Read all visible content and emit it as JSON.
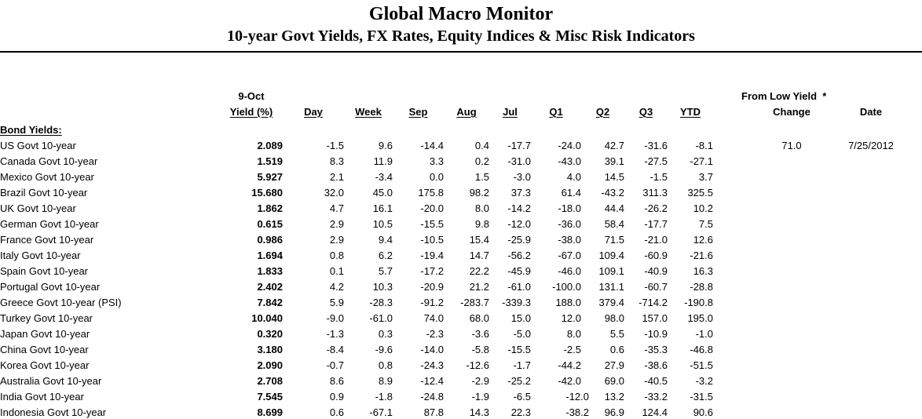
{
  "header": {
    "title": "Global Macro Monitor",
    "subtitle": "10-year Govt Yields, FX Rates, Equity Indices & Misc Risk Indicators"
  },
  "table": {
    "col_headers": {
      "report_date": "9-Oct",
      "yield": "Yield (%)",
      "periods": [
        "Day",
        "Week",
        "Sep",
        "Aug",
        "Jul",
        "Q1",
        "Q2",
        "Q3",
        "YTD"
      ],
      "from_low": "From Low Yield  *",
      "change": "Change",
      "date": "Date"
    },
    "section_label": "Bond Yields:",
    "rows": [
      {
        "name": "US Govt 10-year",
        "yield": "2.089",
        "values": [
          "-1.5",
          "9.6",
          "-14.4",
          "0.4",
          "-17.7",
          "-24.0",
          "42.7",
          "-31.6",
          "-8.1"
        ],
        "change": "71.0",
        "low_date": "7/25/2012"
      },
      {
        "name": "Canada Govt 10-year",
        "yield": "1.519",
        "values": [
          "8.3",
          "11.9",
          "3.3",
          "0.2",
          "-31.0",
          "-43.0",
          "39.1",
          "-27.5",
          "-27.1"
        ],
        "change": "",
        "low_date": ""
      },
      {
        "name": "Mexico Govt 10-year",
        "yield": "5.927",
        "values": [
          "2.1",
          "-3.4",
          "0.0",
          "1.5",
          "-3.0",
          "4.0",
          "14.5",
          "-1.5",
          "3.7"
        ],
        "change": "",
        "low_date": ""
      },
      {
        "name": "Brazil Govt 10-year",
        "yield": "15.680",
        "values": [
          "32.0",
          "45.0",
          "175.8",
          "98.2",
          "37.3",
          "61.4",
          "-43.2",
          "311.3",
          "325.5"
        ],
        "change": "",
        "low_date": ""
      },
      {
        "name": "UK Govt 10-year",
        "yield": "1.862",
        "values": [
          "4.7",
          "16.1",
          "-20.0",
          "8.0",
          "-14.2",
          "-18.0",
          "44.4",
          "-26.2",
          "10.2"
        ],
        "change": "",
        "low_date": ""
      },
      {
        "name": "German Govt 10-year",
        "yield": "0.615",
        "values": [
          "2.9",
          "10.5",
          "-15.5",
          "9.8",
          "-12.0",
          "-36.0",
          "58.4",
          "-17.7",
          "7.5"
        ],
        "change": "",
        "low_date": ""
      },
      {
        "name": "France Govt 10-year",
        "yield": "0.986",
        "values": [
          "2.9",
          "9.4",
          "-10.5",
          "15.4",
          "-25.9",
          "-38.0",
          "71.5",
          "-21.0",
          "12.6"
        ],
        "change": "",
        "low_date": ""
      },
      {
        "name": "Italy Govt 10-year",
        "yield": "1.694",
        "values": [
          "0.8",
          "6.2",
          "-19.4",
          "14.7",
          "-56.2",
          "-67.0",
          "109.4",
          "-60.9",
          "-21.6"
        ],
        "change": "",
        "low_date": ""
      },
      {
        "name": "Spain Govt 10-year",
        "yield": "1.833",
        "values": [
          "0.1",
          "5.7",
          "-17.2",
          "22.2",
          "-45.9",
          "-46.0",
          "109.1",
          "-40.9",
          "16.3"
        ],
        "change": "",
        "low_date": ""
      },
      {
        "name": "Portugal Govt 10-year",
        "yield": "2.402",
        "values": [
          "4.2",
          "10.3",
          "-20.9",
          "21.2",
          "-61.0",
          "-100.0",
          "131.1",
          "-60.7",
          "-28.8"
        ],
        "change": "",
        "low_date": ""
      },
      {
        "name": "Greece Govt 10-year (PSI)",
        "yield": "7.842",
        "values": [
          "5.9",
          "-28.3",
          "-91.2",
          "-283.7",
          "-339.3",
          "188.0",
          "379.4",
          "-714.2",
          "-190.8"
        ],
        "change": "",
        "low_date": ""
      },
      {
        "name": "Turkey Govt 10-year",
        "yield": "10.040",
        "values": [
          "-9.0",
          "-61.0",
          "74.0",
          "68.0",
          "15.0",
          "12.0",
          "98.0",
          "157.0",
          "195.0"
        ],
        "change": "",
        "low_date": ""
      },
      {
        "name": "Japan Govt 10-year",
        "yield": "0.320",
        "values": [
          "-1.3",
          "0.3",
          "-2.3",
          "-3.6",
          "-5.0",
          "8.0",
          "5.5",
          "-10.9",
          "-1.0"
        ],
        "change": "",
        "low_date": ""
      },
      {
        "name": "China Govt 10-year",
        "yield": "3.180",
        "values": [
          "-8.4",
          "-9.6",
          "-14.0",
          "-5.8",
          "-15.5",
          "-2.5",
          "0.6",
          "-35.3",
          "-46.8"
        ],
        "change": "",
        "low_date": ""
      },
      {
        "name": "Korea Govt 10-year",
        "yield": "2.090",
        "values": [
          "-0.7",
          "0.8",
          "-24.3",
          "-12.6",
          "-1.7",
          "-44.2",
          "27.9",
          "-38.6",
          "-51.5"
        ],
        "change": "",
        "low_date": ""
      },
      {
        "name": "Australia Govt 10-year",
        "yield": "2.708",
        "values": [
          "8.6",
          "8.9",
          "-12.4",
          "-2.9",
          "-25.2",
          "-42.0",
          "69.0",
          "-40.5",
          "-3.2"
        ],
        "change": "",
        "low_date": ""
      },
      {
        "name": "India Govt 10-year",
        "yield": "7.545",
        "values": [
          "0.9",
          "-1.8",
          "-24.8",
          "-1.9",
          "-6.5",
          "-12.0",
          "13.2",
          "-33.2",
          "-31.5"
        ],
        "change": "",
        "low_date": "",
        "q1_shift": true
      },
      {
        "name": "Indonesia Govt 10-year",
        "yield": "8.699",
        "values": [
          "0.6",
          "-67.1",
          "87.8",
          "14.3",
          "22.3",
          "-38.2",
          "96.9",
          "124.4",
          "90.6"
        ],
        "change": "",
        "low_date": "",
        "q1_shift": true
      }
    ]
  }
}
